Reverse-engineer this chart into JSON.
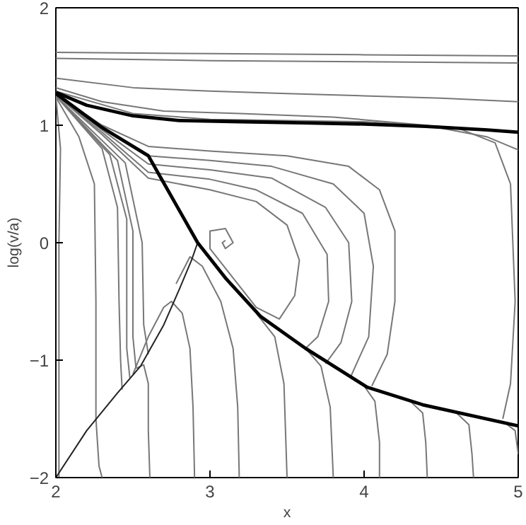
{
  "chart_data": {
    "type": "line",
    "xlabel": "x",
    "ylabel": "log(v/a)",
    "xlim": [
      2,
      5
    ],
    "ylim": [
      -2,
      2
    ],
    "xticks": [
      2,
      3,
      4,
      5
    ],
    "yticks": [
      -2,
      -1,
      0,
      1,
      2
    ],
    "grid": false,
    "line_style": "solid",
    "marker": "none",
    "series": [
      {
        "color": "#777777",
        "x": [
          2,
          3,
          4,
          5
        ],
        "values": [
          1.62,
          1.61,
          1.6,
          1.59
        ]
      },
      {
        "color": "#777777",
        "x": [
          2,
          3,
          4,
          5
        ],
        "values": [
          1.57,
          1.55,
          1.54,
          1.53
        ]
      },
      {
        "color": "#777777",
        "x": [
          2,
          2.5,
          3,
          3.5,
          4,
          4.5,
          5
        ],
        "values": [
          1.4,
          1.32,
          1.29,
          1.27,
          1.25,
          1.23,
          1.2
        ]
      },
      {
        "color": "#777777",
        "x": [
          2,
          2.3,
          2.7,
          3.2,
          3.8,
          4.4,
          4.8,
          5
        ],
        "values": [
          1.32,
          1.2,
          1.12,
          1.1,
          1.07,
          1.0,
          0.9,
          0.79
        ]
      },
      {
        "color": "#777777",
        "x": [
          2,
          2.5,
          3,
          4,
          4.6,
          4.85,
          4.95,
          4.98,
          4.95,
          4.9
        ],
        "values": [
          1.29,
          1.1,
          1.05,
          1.03,
          0.98,
          0.85,
          0.5,
          -0.5,
          -1.2,
          -1.5
        ]
      },
      {
        "color": "#777777",
        "x": [
          2,
          2.3,
          2.6,
          3.0,
          3.5,
          3.9,
          4.1,
          4.2,
          4.2,
          4.15,
          4.05
        ],
        "values": [
          1.26,
          1.0,
          0.82,
          0.78,
          0.74,
          0.65,
          0.45,
          0.1,
          -0.5,
          -0.95,
          -1.22
        ]
      },
      {
        "color": "#777777",
        "x": [
          2,
          2.3,
          2.6,
          3.0,
          3.4,
          3.8,
          4.0,
          4.06,
          4.03,
          3.91
        ],
        "values": [
          1.26,
          0.98,
          0.74,
          0.7,
          0.65,
          0.5,
          0.25,
          -0.2,
          -0.8,
          -1.15
        ]
      },
      {
        "color": "#777777",
        "x": [
          2,
          2.3,
          2.6,
          3.0,
          3.4,
          3.75,
          3.9,
          3.92,
          3.85,
          3.75
        ],
        "values": [
          1.26,
          0.96,
          0.67,
          0.62,
          0.55,
          0.3,
          0.0,
          -0.5,
          -0.85,
          -1.03
        ]
      },
      {
        "color": "#777777",
        "x": [
          2,
          2.3,
          2.6,
          3.0,
          3.3,
          3.6,
          3.76,
          3.77,
          3.7,
          3.62
        ],
        "values": [
          1.26,
          0.94,
          0.6,
          0.54,
          0.45,
          0.25,
          -0.1,
          -0.5,
          -0.8,
          -0.9
        ]
      },
      {
        "color": "#777777",
        "x": [
          2,
          2.3,
          2.6,
          3.0,
          3.3,
          3.5,
          3.58,
          3.55,
          3.45,
          3.3,
          3.15,
          3.0,
          3.0,
          3.1,
          3.15,
          3.1,
          3.08,
          3.1
        ],
        "values": [
          1.26,
          0.92,
          0.55,
          0.45,
          0.35,
          0.15,
          -0.15,
          -0.45,
          -0.65,
          -0.55,
          -0.3,
          -0.05,
          0.1,
          0.12,
          0.0,
          -0.05,
          0.0,
          0.02
        ]
      },
      {
        "color": "#777777",
        "x": [
          2,
          2.03,
          2.02,
          2.02,
          2.02
        ],
        "values": [
          1.25,
          0.8,
          0.0,
          -1.0,
          -2
        ]
      },
      {
        "color": "#777777",
        "x": [
          2,
          2.15,
          2.25,
          2.26,
          2.26,
          2.28,
          2.3
        ],
        "values": [
          1.24,
          0.9,
          0.5,
          -0.5,
          -1.5,
          -1.9,
          -2
        ]
      },
      {
        "color": "#777777",
        "x": [
          2,
          2.3,
          2.4,
          2.41,
          2.42,
          2.43
        ],
        "values": [
          1.25,
          0.8,
          0.3,
          -0.5,
          -1.0,
          -1.25
        ]
      },
      {
        "color": "#777777",
        "x": [
          2,
          2.35,
          2.46,
          2.46,
          2.48
        ],
        "values": [
          1.25,
          0.75,
          0.2,
          -0.9,
          -1.15
        ]
      },
      {
        "color": "#777777",
        "x": [
          2,
          2.4,
          2.5,
          2.5,
          2.52
        ],
        "values": [
          1.25,
          0.7,
          0.1,
          -0.8,
          -1.07
        ]
      },
      {
        "color": "#777777",
        "x": [
          2,
          2.45,
          2.56,
          2.57,
          2.6
        ],
        "values": [
          1.25,
          0.68,
          0.0,
          -0.7,
          -0.95
        ]
      },
      {
        "color": "#777777",
        "x": [
          2.52,
          2.57,
          2.6,
          2.6,
          2.61
        ],
        "values": [
          -1.07,
          -1.04,
          -1.2,
          -1.6,
          -2
        ]
      },
      {
        "color": "#777777",
        "x": [
          2.5,
          2.6,
          2.7,
          2.75,
          2.82,
          2.87,
          2.89,
          2.9
        ],
        "values": [
          -1.12,
          -0.8,
          -0.55,
          -0.5,
          -0.6,
          -0.9,
          -1.4,
          -2
        ]
      },
      {
        "color": "#777777",
        "x": [
          2.78,
          2.87,
          2.95,
          3.07,
          3.15,
          3.18,
          3.19
        ],
        "values": [
          -0.35,
          -0.12,
          -0.2,
          -0.5,
          -0.9,
          -1.4,
          -2
        ]
      },
      {
        "color": "#777777",
        "x": [
          3.3,
          3.42,
          3.48,
          3.5
        ],
        "values": [
          -0.6,
          -0.8,
          -1.2,
          -2
        ]
      },
      {
        "color": "#777777",
        "x": [
          3.62,
          3.72,
          3.78,
          3.8
        ],
        "values": [
          -0.9,
          -1.05,
          -1.4,
          -2
        ]
      },
      {
        "color": "#777777",
        "x": [
          4.0,
          4.07,
          4.1,
          4.1
        ],
        "values": [
          -1.22,
          -1.35,
          -1.7,
          -2
        ]
      },
      {
        "color": "#777777",
        "x": [
          4.3,
          4.38,
          4.4,
          4.41
        ],
        "values": [
          -1.35,
          -1.45,
          -1.7,
          -2
        ]
      },
      {
        "color": "#777777",
        "x": [
          4.6,
          4.68,
          4.7,
          4.71
        ],
        "values": [
          -1.45,
          -1.55,
          -1.8,
          -2
        ]
      },
      {
        "color": "#777777",
        "x": [
          4.9,
          4.98,
          5.0
        ],
        "values": [
          -1.52,
          -1.6,
          -1.8
        ]
      },
      {
        "color": "#222222",
        "x": [
          2,
          2.2,
          2.4,
          2.55,
          2.7,
          2.8,
          2.88,
          2.92
        ],
        "values": [
          -2,
          -1.6,
          -1.28,
          -1.05,
          -0.7,
          -0.4,
          -0.15,
          0
        ]
      },
      {
        "color": "#000000",
        "x": [
          2,
          2.2,
          2.5,
          2.8,
          3.2,
          3.6,
          4,
          4.4,
          4.8,
          5
        ],
        "values": [
          1.28,
          1.17,
          1.08,
          1.04,
          1.03,
          1.02,
          1.01,
          0.99,
          0.96,
          0.94
        ]
      },
      {
        "color": "#000000",
        "x": [
          2,
          2.3,
          2.6,
          2.92,
          3.1,
          3.33,
          3.62,
          4.02,
          4.38,
          5
        ],
        "values": [
          1.27,
          0.98,
          0.74,
          0.0,
          -0.3,
          -0.63,
          -0.9,
          -1.23,
          -1.38,
          -1.56
        ]
      }
    ]
  }
}
